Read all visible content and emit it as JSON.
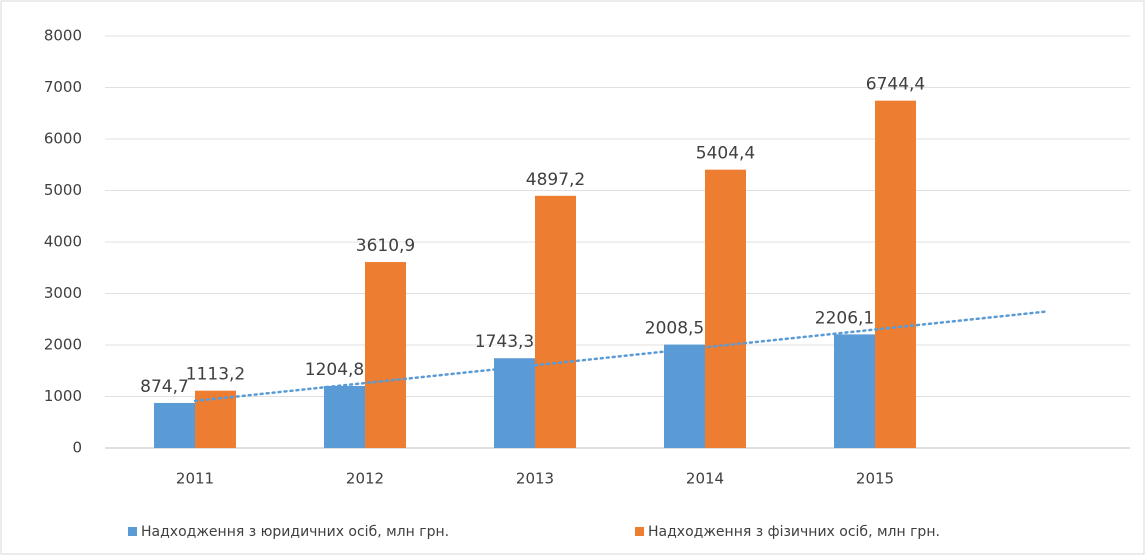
{
  "chart_data": {
    "type": "bar",
    "categories": [
      "2011",
      "2012",
      "2013",
      "2014",
      "2015"
    ],
    "series": [
      {
        "name": "Надходження з юридичних осіб, млн грн.",
        "color": "#5b9bd5",
        "values": [
          874.7,
          1204.8,
          1743.3,
          2008.5,
          2206.1
        ],
        "value_labels": [
          "874,7",
          "1204,8",
          "1743,3",
          "2008,5",
          "2206,1"
        ]
      },
      {
        "name": "Надходження з фізичних осіб, млн грн.",
        "color": "#ed7d31",
        "values": [
          1113.2,
          3610.9,
          4897.2,
          5404.4,
          6744.4
        ],
        "value_labels": [
          "1113,2",
          "3610,9",
          "4897,2",
          "5404,4",
          "6744,4"
        ]
      }
    ],
    "ylim": [
      0,
      8000
    ],
    "yticks": [
      0,
      1000,
      2000,
      3000,
      4000,
      5000,
      6000,
      7000,
      8000
    ],
    "grid": true,
    "legend": "bottom",
    "trendline": {
      "series": 0,
      "type": "linear",
      "forward": 1,
      "color": "#5b9bd5"
    }
  }
}
